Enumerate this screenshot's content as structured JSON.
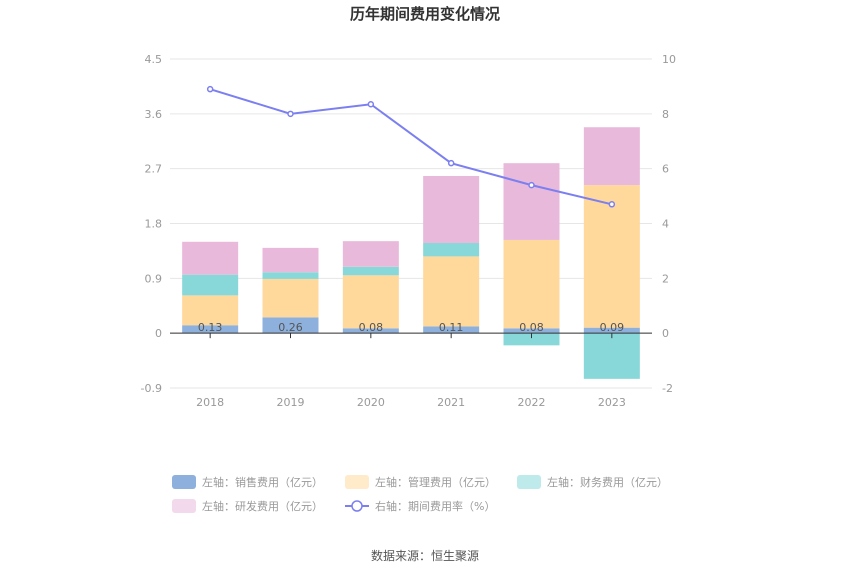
{
  "chart_data": {
    "type": "bar",
    "title": "历年期间费用变化情况",
    "categories": [
      "2018",
      "2019",
      "2020",
      "2021",
      "2022",
      "2023"
    ],
    "stacked": true,
    "left_axis": {
      "ylim": [
        -0.9,
        4.5
      ],
      "ticks": [
        "4.5",
        "3.6",
        "2.7",
        "1.8",
        "0.9",
        "0",
        "-0.9"
      ]
    },
    "right_axis": {
      "ylim": [
        -2,
        10
      ],
      "ticks": [
        "10",
        "8",
        "6",
        "4",
        "2",
        "0",
        "-2"
      ]
    },
    "series": [
      {
        "name": "左轴：销售费用（亿元）",
        "type": "bar",
        "axis": "left",
        "color": "#8eb0dc",
        "values": [
          0.13,
          0.26,
          0.08,
          0.11,
          0.08,
          0.09
        ],
        "labels": [
          "0.13",
          "0.26",
          "0.08",
          "0.11",
          "0.08",
          "0.09"
        ]
      },
      {
        "name": "左轴：管理费用（亿元）",
        "type": "bar",
        "axis": "left",
        "color": "#ffd89c",
        "values": [
          0.49,
          0.63,
          0.87,
          1.15,
          1.45,
          2.34
        ]
      },
      {
        "name": "左轴：财务费用（亿元）",
        "type": "bar",
        "axis": "left",
        "color": "#88d8da",
        "values": [
          0.34,
          0.11,
          0.14,
          0.22,
          -0.2,
          -0.75
        ]
      },
      {
        "name": "左轴：研发费用（亿元）",
        "type": "bar",
        "axis": "left",
        "color": "#e8b9da",
        "values": [
          0.54,
          0.4,
          0.42,
          1.1,
          1.26,
          0.95
        ]
      },
      {
        "name": "右轴：期间费用率（%）",
        "type": "line",
        "axis": "right",
        "color": "#7b7ff0",
        "values": [
          8.9,
          8.0,
          8.35,
          6.2,
          5.4,
          4.7
        ]
      }
    ],
    "legend_position": "bottom",
    "grid": true
  },
  "source": "数据来源：恒生聚源"
}
